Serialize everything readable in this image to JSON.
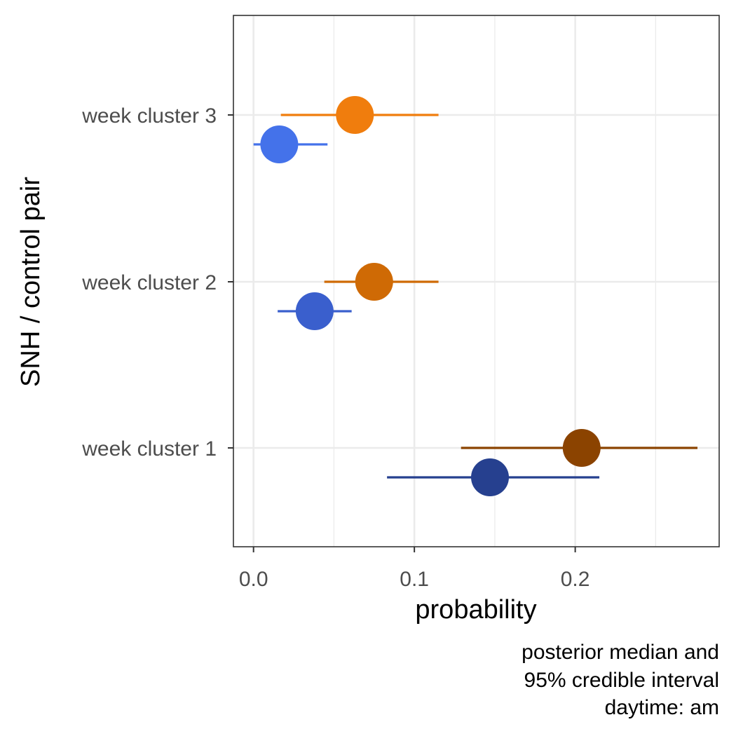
{
  "chart_data": {
    "type": "scatter",
    "subtype": "pointrange",
    "xlabel": "probability",
    "ylabel": "SNH / control pair",
    "xlim": [
      -0.0125,
      0.2895
    ],
    "x_ticks": [
      0.0,
      0.1,
      0.2
    ],
    "x_tick_labels": [
      "0.0",
      "0.1",
      "0.2"
    ],
    "x_minor_ticks": [
      0.05,
      0.15,
      0.25
    ],
    "categories": [
      "week cluster 1",
      "week cluster 2",
      "week cluster 3"
    ],
    "grid": true,
    "legend": "none",
    "caption_lines": [
      "posterior median and",
      "95% credible interval",
      "daytime: am"
    ],
    "points": [
      {
        "category": "week cluster 3",
        "group": "SNH",
        "median": 0.063,
        "lower": 0.017,
        "upper": 0.115,
        "color": "#F07D0D"
      },
      {
        "category": "week cluster 3",
        "group": "control",
        "median": 0.016,
        "lower": 0.0,
        "upper": 0.046,
        "color": "#4472EA"
      },
      {
        "category": "week cluster 2",
        "group": "SNH",
        "median": 0.075,
        "lower": 0.044,
        "upper": 0.115,
        "color": "#CF6A05"
      },
      {
        "category": "week cluster 2",
        "group": "control",
        "median": 0.038,
        "lower": 0.015,
        "upper": 0.061,
        "color": "#3A5FCD"
      },
      {
        "category": "week cluster 1",
        "group": "SNH",
        "median": 0.204,
        "lower": 0.129,
        "upper": 0.276,
        "color": "#8B4300"
      },
      {
        "category": "week cluster 1",
        "group": "control",
        "median": 0.147,
        "lower": 0.083,
        "upper": 0.215,
        "color": "#26408F"
      }
    ]
  }
}
